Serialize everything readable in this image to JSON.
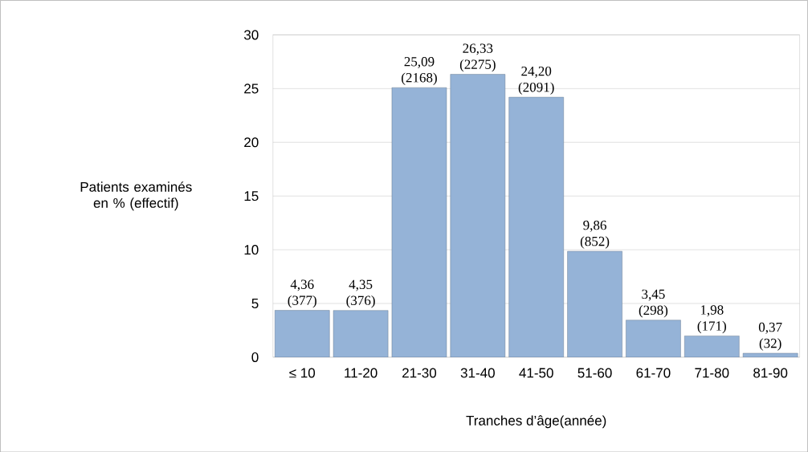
{
  "chart_data": {
    "type": "bar",
    "xlabel": "Tranches d’âge(année)",
    "ylabel": "Patients examinés en % (effectif)",
    "categories": [
      "≤ 10",
      "11-20",
      "21-30",
      "31-40",
      "41-50",
      "51-60",
      "61-70",
      "71-80",
      "81-90"
    ],
    "values": [
      4.36,
      4.35,
      25.09,
      26.33,
      24.2,
      9.86,
      3.45,
      1.98,
      0.37
    ],
    "value_labels": [
      "4,36 (377)",
      "4,35 (376)",
      "25,09 (2168)",
      "26,33 (2275)",
      "24,20 (2091)",
      "9,86 (852)",
      "3,45 (298)",
      "1,98 (171)",
      "0,37 (32)"
    ],
    "color": "#95b3d7",
    "ylim": [
      0,
      30
    ],
    "yticks": [
      0,
      5,
      10,
      15,
      20,
      25,
      30
    ],
    "grid": "y"
  }
}
